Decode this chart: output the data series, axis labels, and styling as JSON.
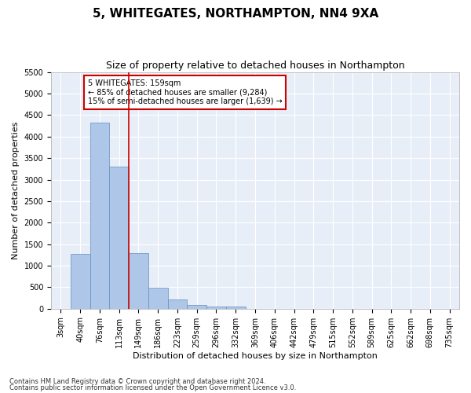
{
  "title": "5, WHITEGATES, NORTHAMPTON, NN4 9XA",
  "subtitle": "Size of property relative to detached houses in Northampton",
  "xlabel": "Distribution of detached houses by size in Northampton",
  "ylabel": "Number of detached properties",
  "footnote1": "Contains HM Land Registry data © Crown copyright and database right 2024.",
  "footnote2": "Contains public sector information licensed under the Open Government Licence v3.0.",
  "annotation_line1": "5 WHITEGATES: 159sqm",
  "annotation_line2": "← 85% of detached houses are smaller (9,284)",
  "annotation_line3": "15% of semi-detached houses are larger (1,639) →",
  "bin_labels": [
    "3sqm",
    "40sqm",
    "76sqm",
    "113sqm",
    "149sqm",
    "186sqm",
    "223sqm",
    "259sqm",
    "296sqm",
    "332sqm",
    "369sqm",
    "406sqm",
    "442sqm",
    "479sqm",
    "515sqm",
    "552sqm",
    "589sqm",
    "625sqm",
    "662sqm",
    "698sqm",
    "735sqm"
  ],
  "bar_heights": [
    0,
    1270,
    4330,
    3300,
    1290,
    480,
    210,
    85,
    55,
    55,
    0,
    0,
    0,
    0,
    0,
    0,
    0,
    0,
    0,
    0,
    0
  ],
  "bar_color": "#aec6e8",
  "bar_edgecolor": "#6090c0",
  "background_color": "#e8eef8",
  "fig_background": "#ffffff",
  "grid_color": "#ffffff",
  "vline_color": "#cc0000",
  "vline_x": 3.5,
  "ylim": [
    0,
    5500
  ],
  "yticks": [
    0,
    500,
    1000,
    1500,
    2000,
    2500,
    3000,
    3500,
    4000,
    4500,
    5000,
    5500
  ],
  "title_fontsize": 11,
  "subtitle_fontsize": 9,
  "axis_label_fontsize": 8,
  "tick_fontsize": 7,
  "footnote_fontsize": 6
}
